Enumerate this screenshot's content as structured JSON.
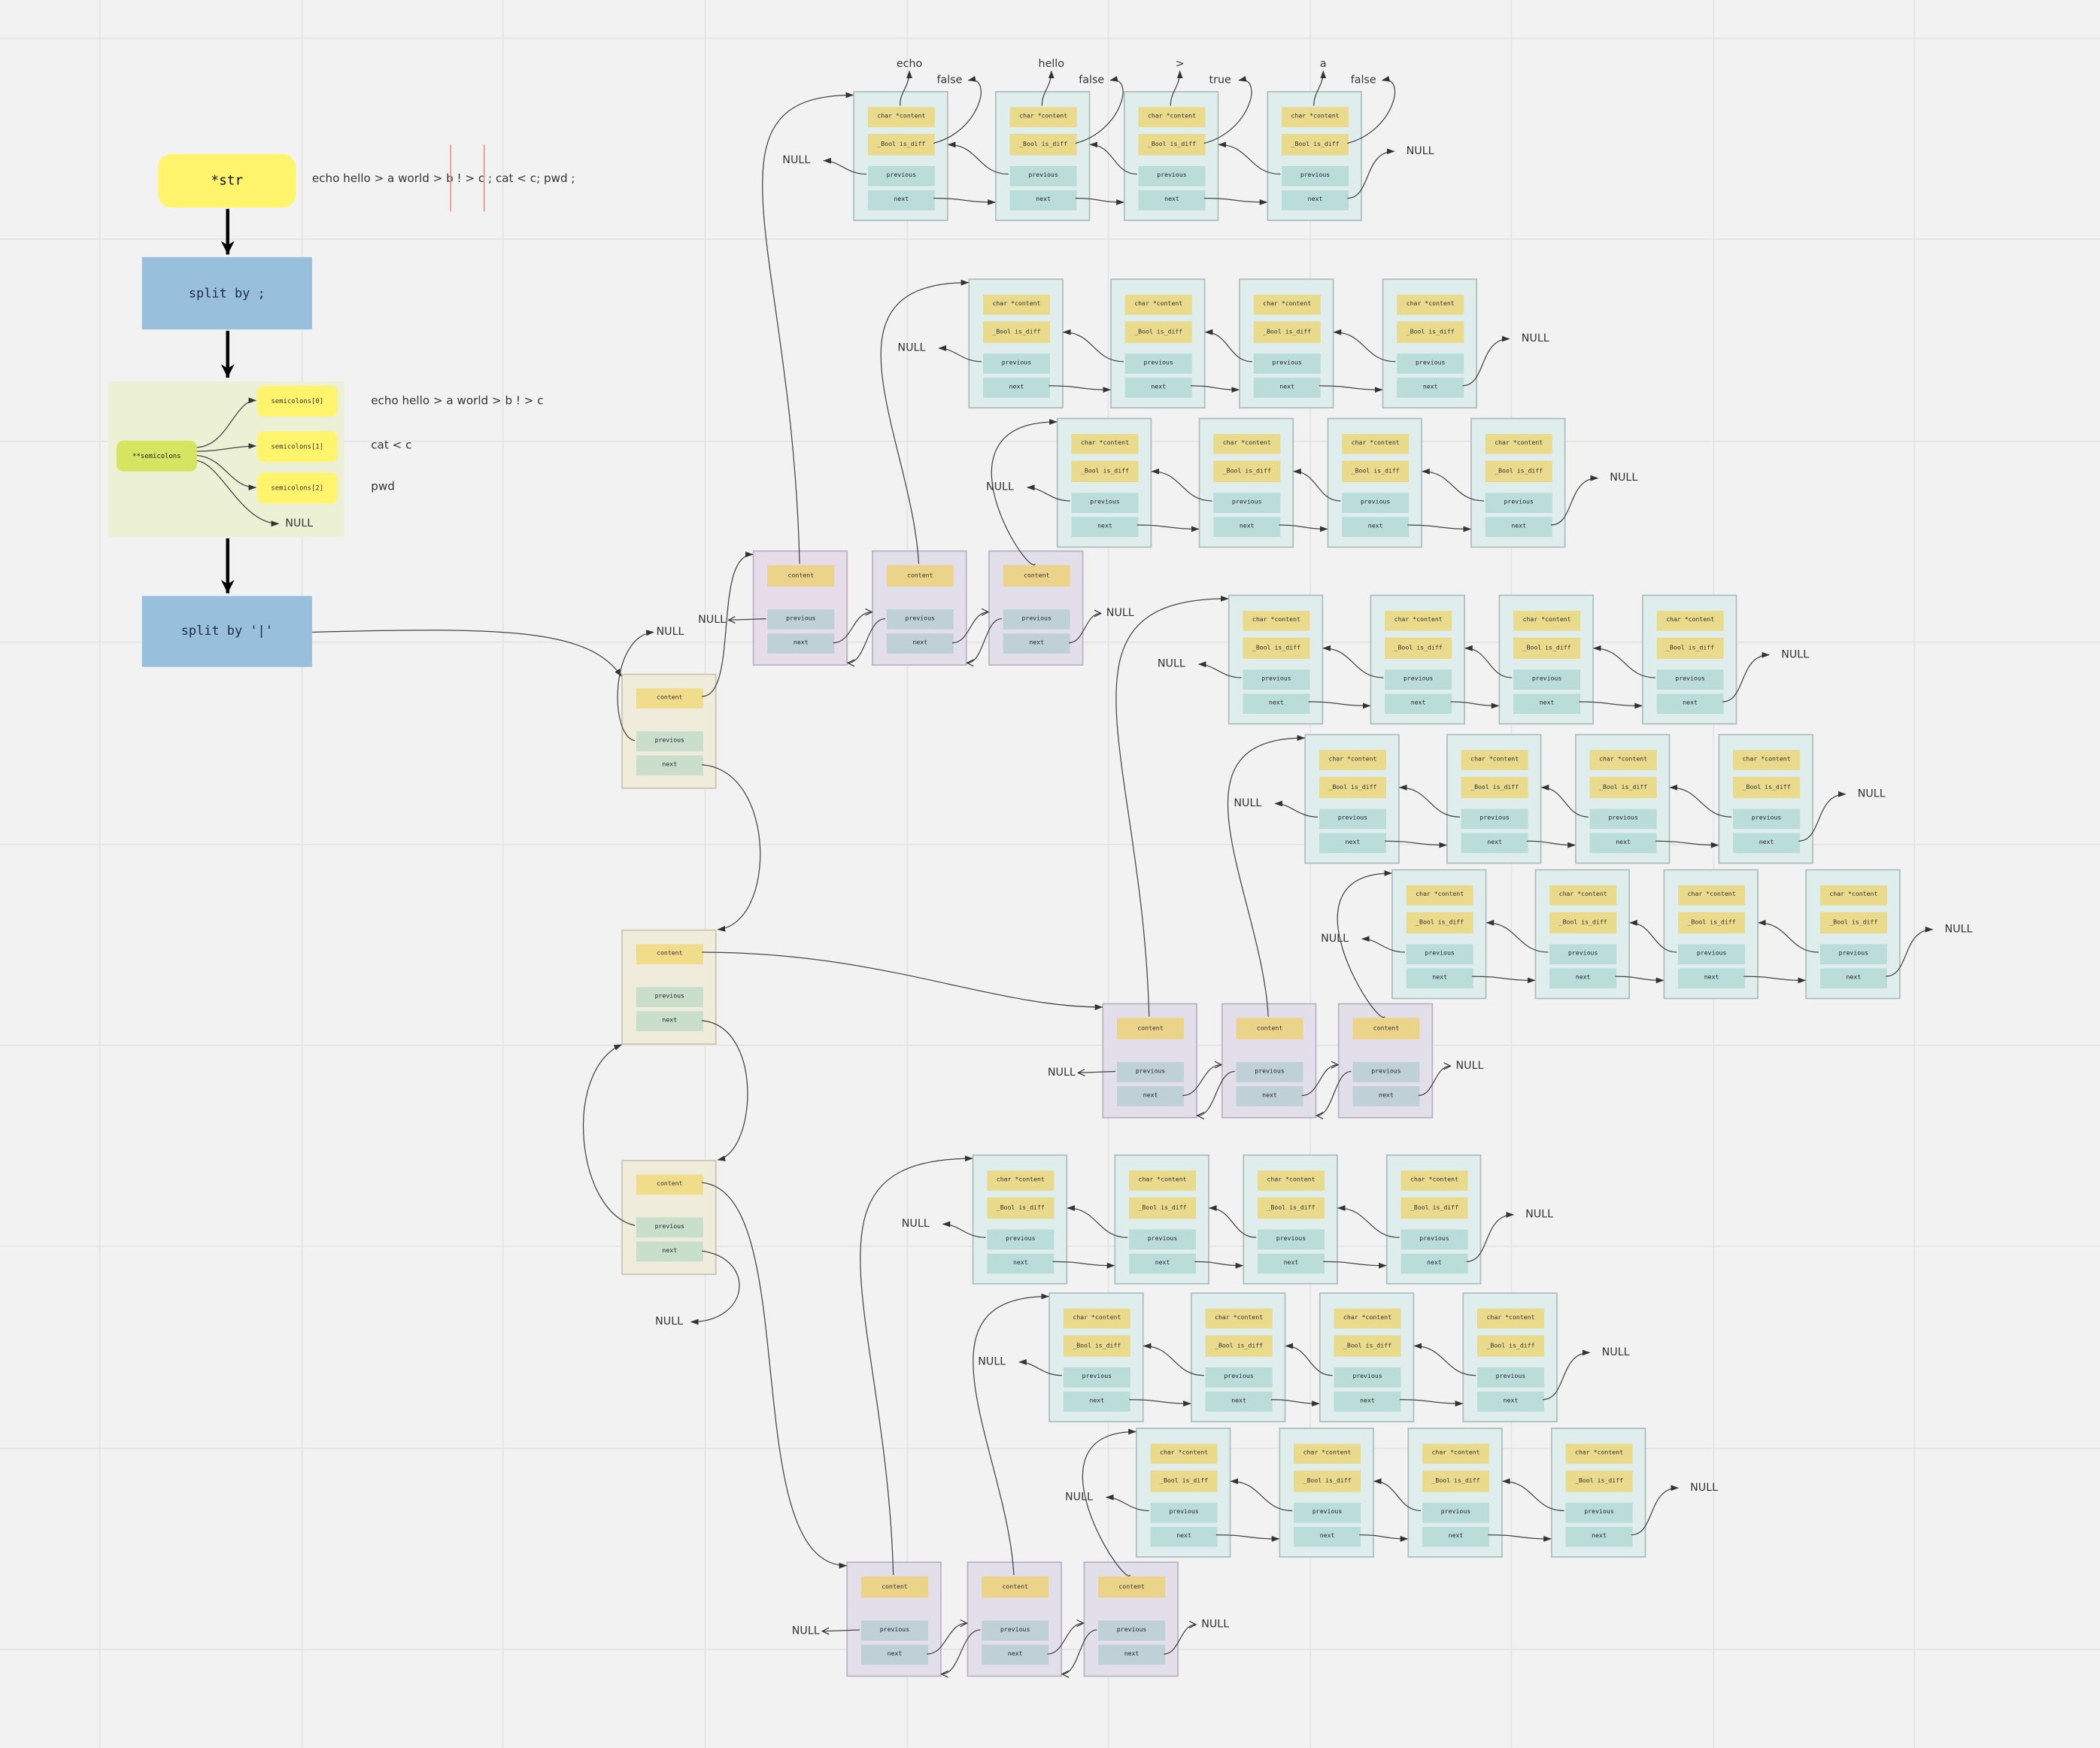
{
  "colors": {
    "background": "#f2f2f2",
    "str_box": "#fff46b",
    "split_box": "#98bfdb",
    "semicolons_group": "#ecf0d5",
    "semicolons_pointer": "#d5e561",
    "word_node": "#dfeeed",
    "word_field_data": "#e9da8c",
    "word_field_link": "#bbddd9",
    "token_node": "#e3dfea",
    "pipe_node": "#f0ecdc",
    "separator_marker": "#e89a8a"
  },
  "flow": {
    "str_label": "*str",
    "input_text": "echo hello > a world > b ! > c ; cat < c; pwd ;",
    "split_semicolon": "split by ;",
    "semicolons_label": "**semicolons",
    "semicolon_items": [
      "semicolons[0]",
      "semicolons[1]",
      "semicolons[2]"
    ],
    "semicolon_values": [
      "echo hello > a world > b ! > c",
      "cat < c",
      "pwd"
    ],
    "semicolons_null": "NULL",
    "split_pipe": "split by '|'"
  },
  "null_label": "NULL",
  "pipe_node_fields": [
    "content",
    "previous",
    "next"
  ],
  "token_node_fields": [
    "content",
    "previous",
    "next"
  ],
  "word_node_fields": [
    "char *content",
    "_Bool is_diff",
    "previous",
    "next"
  ],
  "pipes": [
    {
      "tokens": [
        {
          "words": [
            {
              "content": "echo",
              "is_diff": "false"
            },
            {
              "content": "hello",
              "is_diff": "false"
            },
            {
              "content": ">",
              "is_diff": "true"
            },
            {
              "content": "a",
              "is_diff": "false"
            }
          ]
        },
        {
          "words": [
            {},
            {},
            {},
            {}
          ]
        },
        {
          "words": [
            {},
            {},
            {},
            {}
          ]
        }
      ]
    },
    {
      "tokens": [
        {
          "words": [
            {},
            {},
            {},
            {}
          ]
        },
        {
          "words": [
            {},
            {},
            {},
            {}
          ]
        },
        {
          "words": [
            {},
            {},
            {},
            {}
          ]
        }
      ]
    },
    {
      "tokens": [
        {
          "words": [
            {},
            {},
            {},
            {}
          ]
        },
        {
          "words": [
            {},
            {},
            {},
            {}
          ]
        },
        {
          "words": [
            {},
            {},
            {},
            {}
          ]
        }
      ]
    }
  ]
}
